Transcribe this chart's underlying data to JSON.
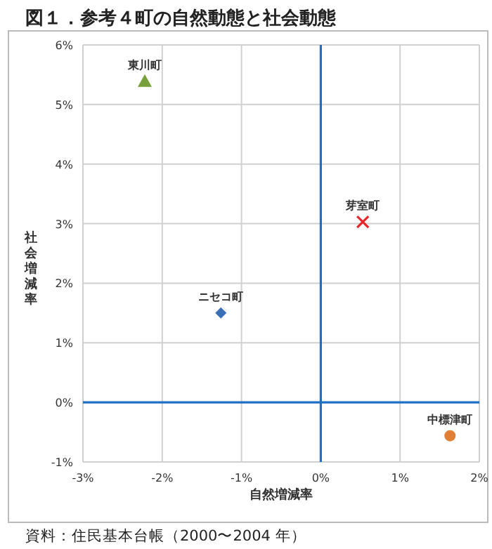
{
  "chart_data": {
    "type": "scatter",
    "title": "図１．参考４町の自然動態と社会動態",
    "xlabel": "自然増減率",
    "ylabel": "社会増減率",
    "xlim": [
      -3,
      2
    ],
    "ylim": [
      -1,
      6
    ],
    "xticks": [
      {
        "value": -3,
        "label": "-3%"
      },
      {
        "value": -2,
        "label": "-2%"
      },
      {
        "value": -1,
        "label": "-1%"
      },
      {
        "value": 0,
        "label": "0%"
      },
      {
        "value": 1,
        "label": "1%"
      },
      {
        "value": 2,
        "label": "2%"
      }
    ],
    "yticks": [
      {
        "value": -1,
        "label": "-1%"
      },
      {
        "value": 0,
        "label": "0%"
      },
      {
        "value": 1,
        "label": "1%"
      },
      {
        "value": 2,
        "label": "2%"
      },
      {
        "value": 3,
        "label": "3%"
      },
      {
        "value": 4,
        "label": "4%"
      },
      {
        "value": 5,
        "label": "5%"
      },
      {
        "value": 6,
        "label": "6%"
      }
    ],
    "grid": true,
    "series": [
      {
        "name": "東川町",
        "color": "#77a03a",
        "marker": "triangle",
        "x": [
          -2.22
        ],
        "values": [
          5.39
        ]
      },
      {
        "name": "芽室町",
        "color": "#e8262a",
        "marker": "cross",
        "x": [
          0.53
        ],
        "values": [
          3.03
        ]
      },
      {
        "name": "ニセコ町",
        "color": "#3a6eb5",
        "marker": "diamond",
        "x": [
          -1.26
        ],
        "values": [
          1.5
        ]
      },
      {
        "name": "中標津町",
        "color": "#e07f35",
        "marker": "circle",
        "x": [
          1.63
        ],
        "values": [
          -0.56
        ]
      }
    ],
    "annotations": [
      "資料：住民基本台帳（2000〜2004 年）"
    ]
  }
}
